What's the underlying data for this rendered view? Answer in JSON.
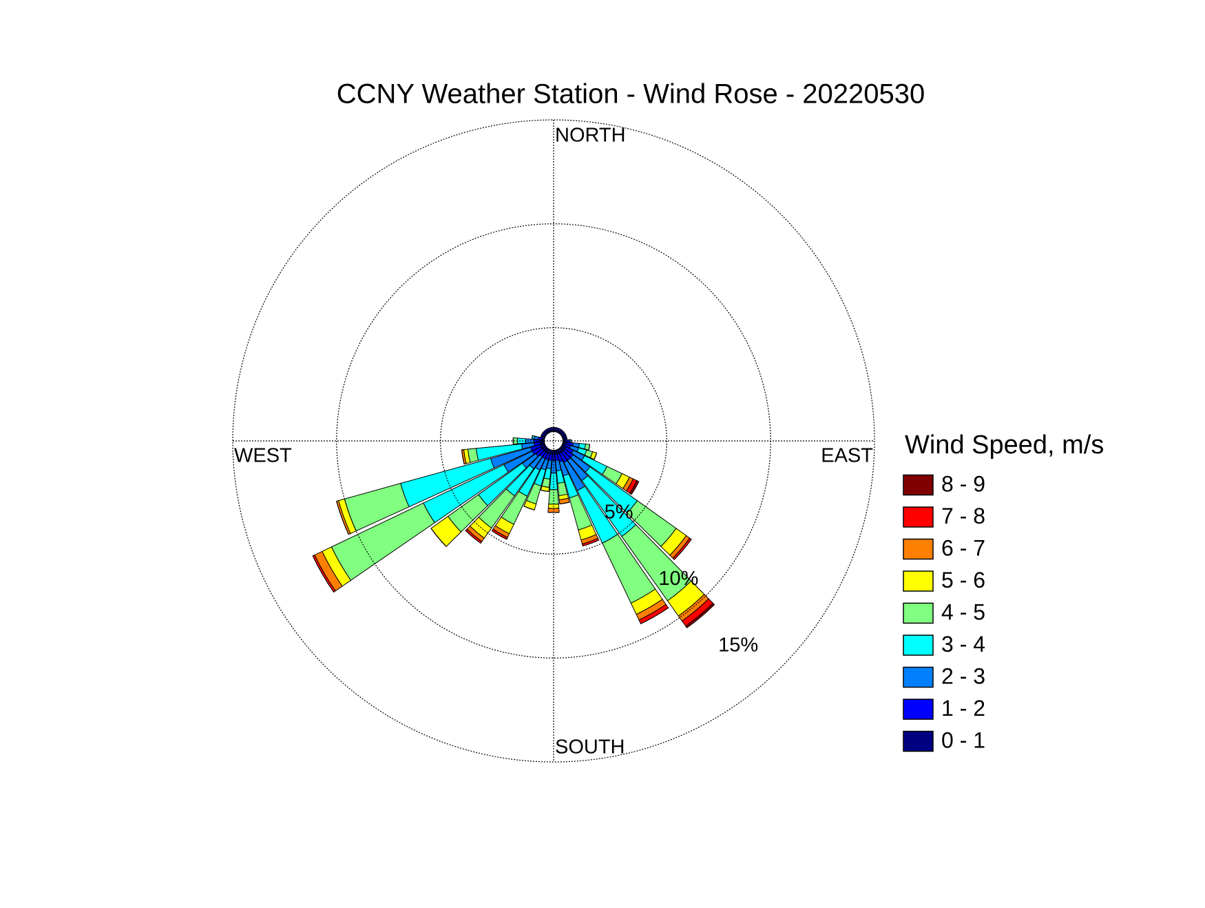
{
  "chart_data": {
    "type": "windrose",
    "title": "CCNY Weather Station - Wind Rose - 20220530",
    "legend_title": "Wind Speed, m/s",
    "cardinal_labels": {
      "north": "NORTH",
      "east": "EAST",
      "south": "SOUTH",
      "west": "WEST"
    },
    "directions": [
      0,
      10,
      20,
      30,
      40,
      50,
      60,
      70,
      80,
      90,
      100,
      110,
      120,
      130,
      140,
      150,
      160,
      170,
      180,
      190,
      200,
      210,
      220,
      230,
      240,
      250,
      260,
      270,
      280,
      290,
      300,
      310,
      320,
      330,
      340,
      350
    ],
    "rlim": [
      0,
      15
    ],
    "rticks": [
      {
        "value": 5,
        "label": "5%"
      },
      {
        "value": 10,
        "label": "10%"
      },
      {
        "value": 15,
        "label": "15%"
      }
    ],
    "series": [
      {
        "name": "0 - 1",
        "color": "#000080",
        "values": [
          0.1,
          0.1,
          0.1,
          0.1,
          0.1,
          0.1,
          0.1,
          0.1,
          0.1,
          0.1,
          0.2,
          0.1,
          0.2,
          0.2,
          0.2,
          0.2,
          0.2,
          0.2,
          0.2,
          0.2,
          0.2,
          0.2,
          0.2,
          0.2,
          0.2,
          0.2,
          0.2,
          0.2,
          0.1,
          0.1,
          0.1,
          0.1,
          0.1,
          0.1,
          0.1,
          0.1
        ]
      },
      {
        "name": "1 - 2",
        "color": "#0000ff",
        "values": [
          0.1,
          0.1,
          0.1,
          0.1,
          0.1,
          0.1,
          0.1,
          0.1,
          0.1,
          0.2,
          0.3,
          0.3,
          0.4,
          0.5,
          0.5,
          0.5,
          0.4,
          0.3,
          0.3,
          0.3,
          0.3,
          0.3,
          0.3,
          0.4,
          0.5,
          0.5,
          0.3,
          0.3,
          0.2,
          0.1,
          0.1,
          0.1,
          0.1,
          0.1,
          0.1,
          0.1
        ]
      },
      {
        "name": "2 - 3",
        "color": "#0080ff",
        "values": [
          0,
          0,
          0,
          0,
          0,
          0,
          0,
          0,
          0,
          0.1,
          0.3,
          0.4,
          0.6,
          1.0,
          1.2,
          1.5,
          0.7,
          0.5,
          0.6,
          0.4,
          0.5,
          0.6,
          0.7,
          0.8,
          1.5,
          2.0,
          0.6,
          0.4,
          0.2,
          0,
          0,
          0,
          0,
          0,
          0,
          0
        ]
      },
      {
        "name": "3 - 4",
        "color": "#00ffff",
        "values": [
          0,
          0,
          0,
          0,
          0,
          0,
          0,
          0,
          0,
          0,
          0.3,
          0.4,
          1.2,
          2.8,
          3.3,
          2.8,
          1.1,
          0.6,
          0.8,
          0.5,
          0.8,
          1.4,
          1.6,
          2.6,
          4.3,
          4.5,
          2.2,
          0.4,
          0.1,
          0,
          0,
          0,
          0,
          0,
          0,
          0
        ]
      },
      {
        "name": "4 - 5",
        "color": "#80ff80",
        "values": [
          0,
          0,
          0,
          0,
          0,
          0,
          0,
          0,
          0,
          0,
          0.2,
          0.3,
          0.8,
          2.3,
          3.8,
          3.2,
          1.6,
          0.6,
          0.7,
          0.4,
          0.9,
          1.5,
          1.9,
          1.8,
          4.9,
          2.8,
          0.4,
          0.2,
          0,
          0,
          0,
          0,
          0,
          0,
          0,
          0
        ]
      },
      {
        "name": "5 - 6",
        "color": "#ffff00",
        "values": [
          0,
          0,
          0,
          0,
          0,
          0,
          0,
          0,
          0,
          0,
          0,
          0.2,
          0.4,
          0.6,
          0.9,
          0.6,
          0.5,
          0.2,
          0.2,
          0.2,
          0.3,
          0.5,
          0.6,
          1.0,
          0.5,
          0.3,
          0.2,
          0,
          0,
          0,
          0,
          0,
          0,
          0,
          0,
          0
        ]
      },
      {
        "name": "6 - 7",
        "color": "#ff8000",
        "values": [
          0,
          0,
          0,
          0,
          0,
          0,
          0,
          0,
          0,
          0,
          0,
          0,
          0.2,
          0.2,
          0.3,
          0.3,
          0.2,
          0.2,
          0.2,
          0,
          0,
          0.2,
          0.2,
          0,
          0.4,
          0.1,
          0.1,
          0,
          0,
          0,
          0,
          0,
          0,
          0,
          0,
          0
        ]
      },
      {
        "name": "7 - 8",
        "color": "#ff0000",
        "values": [
          0,
          0,
          0,
          0,
          0,
          0,
          0,
          0,
          0,
          0,
          0,
          0,
          0.2,
          0.1,
          0.3,
          0.2,
          0.1,
          0,
          0,
          0,
          0,
          0.1,
          0.1,
          0,
          0.1,
          0,
          0,
          0,
          0,
          0,
          0,
          0,
          0,
          0,
          0,
          0
        ]
      },
      {
        "name": "8 - 9",
        "color": "#800000",
        "values": [
          0,
          0,
          0,
          0,
          0,
          0,
          0,
          0,
          0,
          0,
          0,
          0,
          0.1,
          0,
          0.1,
          0,
          0,
          0,
          0,
          0,
          0,
          0,
          0,
          0,
          0,
          0,
          0,
          0,
          0,
          0,
          0,
          0,
          0,
          0,
          0,
          0
        ]
      }
    ]
  }
}
